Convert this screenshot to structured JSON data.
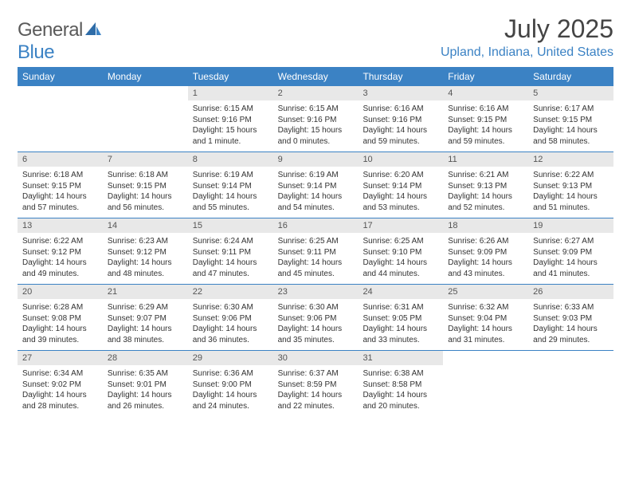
{
  "brand": {
    "name_part1": "General",
    "name_part2": "Blue"
  },
  "title": "July 2025",
  "location": "Upland, Indiana, United States",
  "colors": {
    "brand_blue": "#3b82c4",
    "text_gray": "#5a5a5a",
    "daynum_bg": "#e8e8e8",
    "border": "#3b82c4",
    "body_text": "#333333",
    "background": "#ffffff"
  },
  "typography": {
    "title_fontsize": 32,
    "location_fontsize": 16,
    "dayhead_fontsize": 12,
    "cell_fontsize": 10
  },
  "day_headers": [
    "Sunday",
    "Monday",
    "Tuesday",
    "Wednesday",
    "Thursday",
    "Friday",
    "Saturday"
  ],
  "weeks": [
    [
      null,
      null,
      {
        "n": "1",
        "sr": "Sunrise: 6:15 AM",
        "ss": "Sunset: 9:16 PM",
        "dl1": "Daylight: 15 hours",
        "dl2": "and 1 minute."
      },
      {
        "n": "2",
        "sr": "Sunrise: 6:15 AM",
        "ss": "Sunset: 9:16 PM",
        "dl1": "Daylight: 15 hours",
        "dl2": "and 0 minutes."
      },
      {
        "n": "3",
        "sr": "Sunrise: 6:16 AM",
        "ss": "Sunset: 9:16 PM",
        "dl1": "Daylight: 14 hours",
        "dl2": "and 59 minutes."
      },
      {
        "n": "4",
        "sr": "Sunrise: 6:16 AM",
        "ss": "Sunset: 9:15 PM",
        "dl1": "Daylight: 14 hours",
        "dl2": "and 59 minutes."
      },
      {
        "n": "5",
        "sr": "Sunrise: 6:17 AM",
        "ss": "Sunset: 9:15 PM",
        "dl1": "Daylight: 14 hours",
        "dl2": "and 58 minutes."
      }
    ],
    [
      {
        "n": "6",
        "sr": "Sunrise: 6:18 AM",
        "ss": "Sunset: 9:15 PM",
        "dl1": "Daylight: 14 hours",
        "dl2": "and 57 minutes."
      },
      {
        "n": "7",
        "sr": "Sunrise: 6:18 AM",
        "ss": "Sunset: 9:15 PM",
        "dl1": "Daylight: 14 hours",
        "dl2": "and 56 minutes."
      },
      {
        "n": "8",
        "sr": "Sunrise: 6:19 AM",
        "ss": "Sunset: 9:14 PM",
        "dl1": "Daylight: 14 hours",
        "dl2": "and 55 minutes."
      },
      {
        "n": "9",
        "sr": "Sunrise: 6:19 AM",
        "ss": "Sunset: 9:14 PM",
        "dl1": "Daylight: 14 hours",
        "dl2": "and 54 minutes."
      },
      {
        "n": "10",
        "sr": "Sunrise: 6:20 AM",
        "ss": "Sunset: 9:14 PM",
        "dl1": "Daylight: 14 hours",
        "dl2": "and 53 minutes."
      },
      {
        "n": "11",
        "sr": "Sunrise: 6:21 AM",
        "ss": "Sunset: 9:13 PM",
        "dl1": "Daylight: 14 hours",
        "dl2": "and 52 minutes."
      },
      {
        "n": "12",
        "sr": "Sunrise: 6:22 AM",
        "ss": "Sunset: 9:13 PM",
        "dl1": "Daylight: 14 hours",
        "dl2": "and 51 minutes."
      }
    ],
    [
      {
        "n": "13",
        "sr": "Sunrise: 6:22 AM",
        "ss": "Sunset: 9:12 PM",
        "dl1": "Daylight: 14 hours",
        "dl2": "and 49 minutes."
      },
      {
        "n": "14",
        "sr": "Sunrise: 6:23 AM",
        "ss": "Sunset: 9:12 PM",
        "dl1": "Daylight: 14 hours",
        "dl2": "and 48 minutes."
      },
      {
        "n": "15",
        "sr": "Sunrise: 6:24 AM",
        "ss": "Sunset: 9:11 PM",
        "dl1": "Daylight: 14 hours",
        "dl2": "and 47 minutes."
      },
      {
        "n": "16",
        "sr": "Sunrise: 6:25 AM",
        "ss": "Sunset: 9:11 PM",
        "dl1": "Daylight: 14 hours",
        "dl2": "and 45 minutes."
      },
      {
        "n": "17",
        "sr": "Sunrise: 6:25 AM",
        "ss": "Sunset: 9:10 PM",
        "dl1": "Daylight: 14 hours",
        "dl2": "and 44 minutes."
      },
      {
        "n": "18",
        "sr": "Sunrise: 6:26 AM",
        "ss": "Sunset: 9:09 PM",
        "dl1": "Daylight: 14 hours",
        "dl2": "and 43 minutes."
      },
      {
        "n": "19",
        "sr": "Sunrise: 6:27 AM",
        "ss": "Sunset: 9:09 PM",
        "dl1": "Daylight: 14 hours",
        "dl2": "and 41 minutes."
      }
    ],
    [
      {
        "n": "20",
        "sr": "Sunrise: 6:28 AM",
        "ss": "Sunset: 9:08 PM",
        "dl1": "Daylight: 14 hours",
        "dl2": "and 39 minutes."
      },
      {
        "n": "21",
        "sr": "Sunrise: 6:29 AM",
        "ss": "Sunset: 9:07 PM",
        "dl1": "Daylight: 14 hours",
        "dl2": "and 38 minutes."
      },
      {
        "n": "22",
        "sr": "Sunrise: 6:30 AM",
        "ss": "Sunset: 9:06 PM",
        "dl1": "Daylight: 14 hours",
        "dl2": "and 36 minutes."
      },
      {
        "n": "23",
        "sr": "Sunrise: 6:30 AM",
        "ss": "Sunset: 9:06 PM",
        "dl1": "Daylight: 14 hours",
        "dl2": "and 35 minutes."
      },
      {
        "n": "24",
        "sr": "Sunrise: 6:31 AM",
        "ss": "Sunset: 9:05 PM",
        "dl1": "Daylight: 14 hours",
        "dl2": "and 33 minutes."
      },
      {
        "n": "25",
        "sr": "Sunrise: 6:32 AM",
        "ss": "Sunset: 9:04 PM",
        "dl1": "Daylight: 14 hours",
        "dl2": "and 31 minutes."
      },
      {
        "n": "26",
        "sr": "Sunrise: 6:33 AM",
        "ss": "Sunset: 9:03 PM",
        "dl1": "Daylight: 14 hours",
        "dl2": "and 29 minutes."
      }
    ],
    [
      {
        "n": "27",
        "sr": "Sunrise: 6:34 AM",
        "ss": "Sunset: 9:02 PM",
        "dl1": "Daylight: 14 hours",
        "dl2": "and 28 minutes."
      },
      {
        "n": "28",
        "sr": "Sunrise: 6:35 AM",
        "ss": "Sunset: 9:01 PM",
        "dl1": "Daylight: 14 hours",
        "dl2": "and 26 minutes."
      },
      {
        "n": "29",
        "sr": "Sunrise: 6:36 AM",
        "ss": "Sunset: 9:00 PM",
        "dl1": "Daylight: 14 hours",
        "dl2": "and 24 minutes."
      },
      {
        "n": "30",
        "sr": "Sunrise: 6:37 AM",
        "ss": "Sunset: 8:59 PM",
        "dl1": "Daylight: 14 hours",
        "dl2": "and 22 minutes."
      },
      {
        "n": "31",
        "sr": "Sunrise: 6:38 AM",
        "ss": "Sunset: 8:58 PM",
        "dl1": "Daylight: 14 hours",
        "dl2": "and 20 minutes."
      },
      null,
      null
    ]
  ]
}
